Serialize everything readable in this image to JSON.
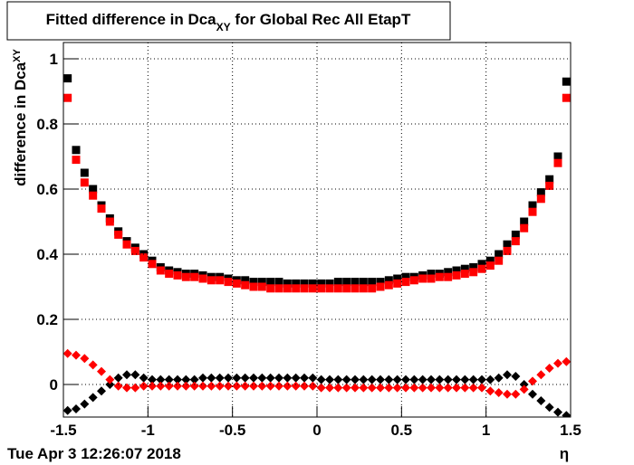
{
  "chart_data": {
    "type": "scatter",
    "title": [
      "Fitted difference in Dca",
      "XY",
      " for Global Rec All EtapT"
    ],
    "y_label": [
      "difference in Dca",
      "XY"
    ],
    "x_label": "η",
    "timestamp": "Tue Apr  3 12:26:07 2018",
    "xlim": [
      -1.5,
      1.5
    ],
    "xticks": [
      -1.5,
      -1,
      -0.5,
      0,
      0.5,
      1,
      1.5
    ],
    "ylim": [
      -0.1,
      1.05
    ],
    "yticks": [
      0,
      0.2,
      0.4,
      0.6,
      0.8,
      1
    ],
    "grid": true,
    "x": [
      -1.475,
      -1.425,
      -1.375,
      -1.325,
      -1.275,
      -1.225,
      -1.175,
      -1.125,
      -1.075,
      -1.025,
      -0.975,
      -0.925,
      -0.875,
      -0.825,
      -0.775,
      -0.725,
      -0.675,
      -0.625,
      -0.575,
      -0.525,
      -0.475,
      -0.425,
      -0.375,
      -0.325,
      -0.275,
      -0.225,
      -0.175,
      -0.125,
      -0.075,
      -0.025,
      0.025,
      0.075,
      0.125,
      0.175,
      0.225,
      0.275,
      0.325,
      0.375,
      0.425,
      0.475,
      0.525,
      0.575,
      0.625,
      0.675,
      0.725,
      0.775,
      0.825,
      0.875,
      0.925,
      0.975,
      1.025,
      1.075,
      1.125,
      1.175,
      1.225,
      1.275,
      1.325,
      1.375,
      1.425,
      1.475
    ],
    "series": [
      {
        "color": "#000000",
        "marker": "square",
        "values": [
          0.94,
          0.72,
          0.65,
          0.6,
          0.55,
          0.51,
          0.47,
          0.44,
          0.42,
          0.4,
          0.38,
          0.36,
          0.35,
          0.345,
          0.34,
          0.34,
          0.335,
          0.33,
          0.33,
          0.325,
          0.32,
          0.32,
          0.315,
          0.315,
          0.315,
          0.315,
          0.31,
          0.31,
          0.31,
          0.31,
          0.31,
          0.31,
          0.315,
          0.315,
          0.315,
          0.315,
          0.315,
          0.315,
          0.32,
          0.325,
          0.33,
          0.33,
          0.335,
          0.34,
          0.34,
          0.345,
          0.35,
          0.355,
          0.36,
          0.37,
          0.38,
          0.4,
          0.43,
          0.46,
          0.5,
          0.55,
          0.59,
          0.63,
          0.7,
          0.93
        ]
      },
      {
        "color": "#ff0000",
        "marker": "square",
        "values": [
          0.88,
          0.69,
          0.62,
          0.58,
          0.54,
          0.5,
          0.46,
          0.43,
          0.41,
          0.39,
          0.37,
          0.35,
          0.34,
          0.335,
          0.33,
          0.33,
          0.325,
          0.32,
          0.32,
          0.315,
          0.31,
          0.305,
          0.3,
          0.3,
          0.295,
          0.295,
          0.295,
          0.295,
          0.295,
          0.295,
          0.295,
          0.295,
          0.295,
          0.295,
          0.295,
          0.295,
          0.295,
          0.3,
          0.305,
          0.31,
          0.315,
          0.32,
          0.325,
          0.325,
          0.33,
          0.33,
          0.335,
          0.34,
          0.345,
          0.355,
          0.365,
          0.38,
          0.41,
          0.44,
          0.48,
          0.53,
          0.57,
          0.61,
          0.68,
          0.88
        ]
      },
      {
        "color": "#000000",
        "marker": "diamond",
        "values": [
          -0.08,
          -0.075,
          -0.06,
          -0.04,
          -0.02,
          0.0,
          0.02,
          0.03,
          0.03,
          0.02,
          0.015,
          0.015,
          0.015,
          0.015,
          0.015,
          0.015,
          0.02,
          0.02,
          0.02,
          0.02,
          0.02,
          0.02,
          0.02,
          0.02,
          0.02,
          0.02,
          0.02,
          0.02,
          0.02,
          0.02,
          0.015,
          0.015,
          0.015,
          0.015,
          0.015,
          0.015,
          0.015,
          0.015,
          0.015,
          0.015,
          0.015,
          0.015,
          0.015,
          0.015,
          0.015,
          0.015,
          0.015,
          0.015,
          0.015,
          0.015,
          0.015,
          0.02,
          0.03,
          0.025,
          0.0,
          -0.03,
          -0.05,
          -0.07,
          -0.085,
          -0.095
        ]
      },
      {
        "color": "#ff0000",
        "marker": "diamond",
        "values": [
          0.095,
          0.09,
          0.08,
          0.06,
          0.04,
          0.015,
          -0.005,
          -0.01,
          -0.01,
          -0.005,
          -0.005,
          -0.005,
          -0.005,
          -0.005,
          -0.005,
          -0.005,
          -0.005,
          -0.005,
          -0.005,
          -0.005,
          -0.005,
          -0.005,
          -0.005,
          -0.005,
          -0.005,
          -0.005,
          -0.005,
          -0.005,
          -0.005,
          -0.005,
          -0.01,
          -0.01,
          -0.01,
          -0.01,
          -0.01,
          -0.01,
          -0.01,
          -0.01,
          -0.01,
          -0.01,
          -0.01,
          -0.01,
          -0.01,
          -0.01,
          -0.01,
          -0.01,
          -0.01,
          -0.01,
          -0.01,
          -0.01,
          -0.02,
          -0.025,
          -0.03,
          -0.03,
          -0.015,
          0.01,
          0.03,
          0.05,
          0.065,
          0.07
        ]
      }
    ]
  }
}
